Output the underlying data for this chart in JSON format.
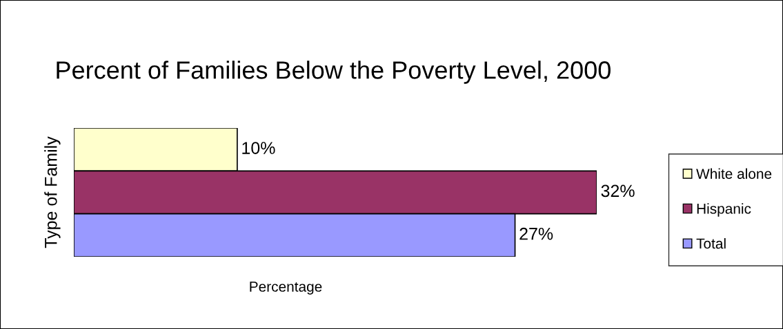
{
  "chart_data": {
    "type": "bar",
    "orientation": "horizontal",
    "title": "Percent of Families Below the Poverty Level, 2000",
    "xlabel": "Percentage",
    "ylabel": "Type of Family",
    "categories": [
      null
    ],
    "series": [
      {
        "name": "White alone",
        "color": "#ffffcc",
        "values": [
          10
        ],
        "value_labels": [
          "10%"
        ]
      },
      {
        "name": "Hispanic",
        "color": "#993366",
        "values": [
          32
        ],
        "value_labels": [
          "32%"
        ]
      },
      {
        "name": "Total",
        "color": "#9999ff",
        "values": [
          27
        ],
        "value_labels": [
          "27%"
        ]
      }
    ],
    "legend": "right",
    "tick_labels": false
  }
}
